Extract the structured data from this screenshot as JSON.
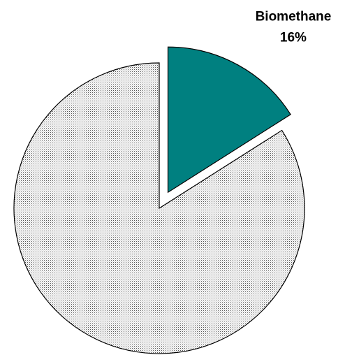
{
  "chart_data": {
    "type": "pie",
    "categories": [
      "Biomethane",
      null
    ],
    "values": [
      16,
      84
    ],
    "value_labels": [
      "16%",
      null
    ],
    "colors": [
      "#008080",
      "pattern-dots"
    ],
    "exploded": [
      true,
      false
    ]
  }
}
